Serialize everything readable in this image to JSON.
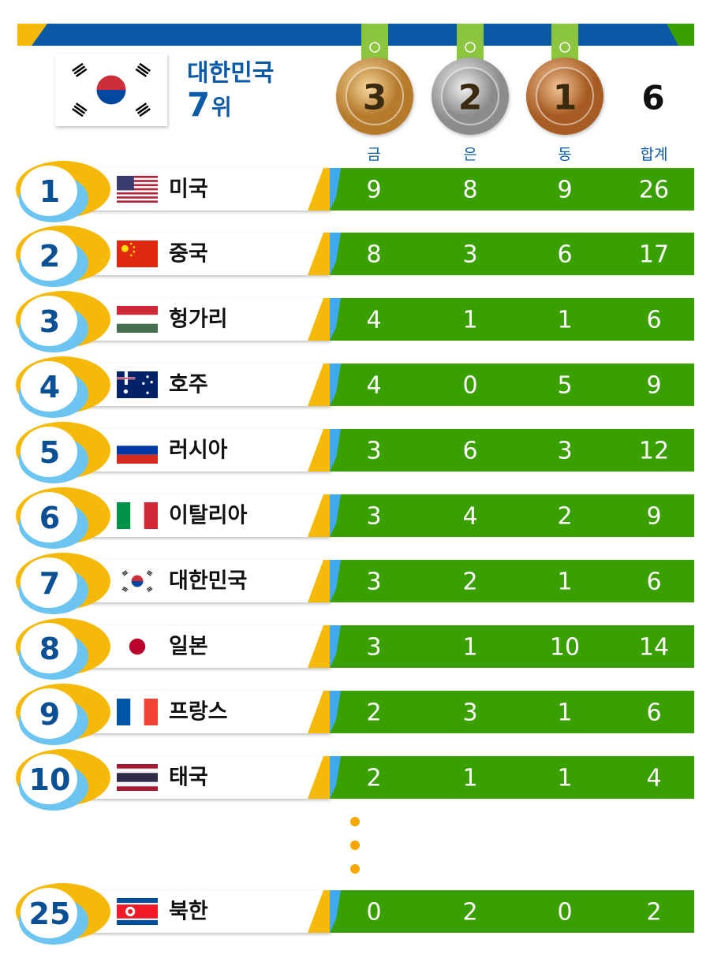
{
  "header": {
    "country": "대한민국",
    "rank": 7,
    "rank_suffix": "위",
    "gold": 3,
    "silver": 2,
    "bronze": 1,
    "total": 6
  },
  "columns": [
    "금",
    "은",
    "동",
    "합계"
  ],
  "rows": [
    {
      "rank": 1,
      "country": "미국",
      "gold": 9,
      "silver": 8,
      "bronze": 9,
      "total": 26
    },
    {
      "rank": 2,
      "country": "중국",
      "gold": 8,
      "silver": 3,
      "bronze": 6,
      "total": 17
    },
    {
      "rank": 3,
      "country": "헝가리",
      "gold": 4,
      "silver": 1,
      "bronze": 1,
      "total": 6
    },
    {
      "rank": 4,
      "country": "호주",
      "gold": 4,
      "silver": 0,
      "bronze": 5,
      "total": 9
    },
    {
      "rank": 5,
      "country": "러시아",
      "gold": 3,
      "silver": 6,
      "bronze": 3,
      "total": 12
    },
    {
      "rank": 6,
      "country": "이탈리아",
      "gold": 3,
      "silver": 4,
      "bronze": 2,
      "total": 9
    },
    {
      "rank": 7,
      "country": "대한민국",
      "gold": 3,
      "silver": 2,
      "bronze": 1,
      "total": 6
    },
    {
      "rank": 8,
      "country": "일본",
      "gold": 3,
      "silver": 1,
      "bronze": 10,
      "total": 14
    },
    {
      "rank": 9,
      "country": "프랑스",
      "gold": 2,
      "silver": 3,
      "bronze": 1,
      "total": 6
    },
    {
      "rank": 10,
      "country": "태국",
      "gold": 2,
      "silver": 1,
      "bronze": 1,
      "total": 4
    },
    {
      "rank": 25,
      "country": "북한",
      "gold": 0,
      "silver": 2,
      "bronze": 0,
      "total": 2
    }
  ]
}
